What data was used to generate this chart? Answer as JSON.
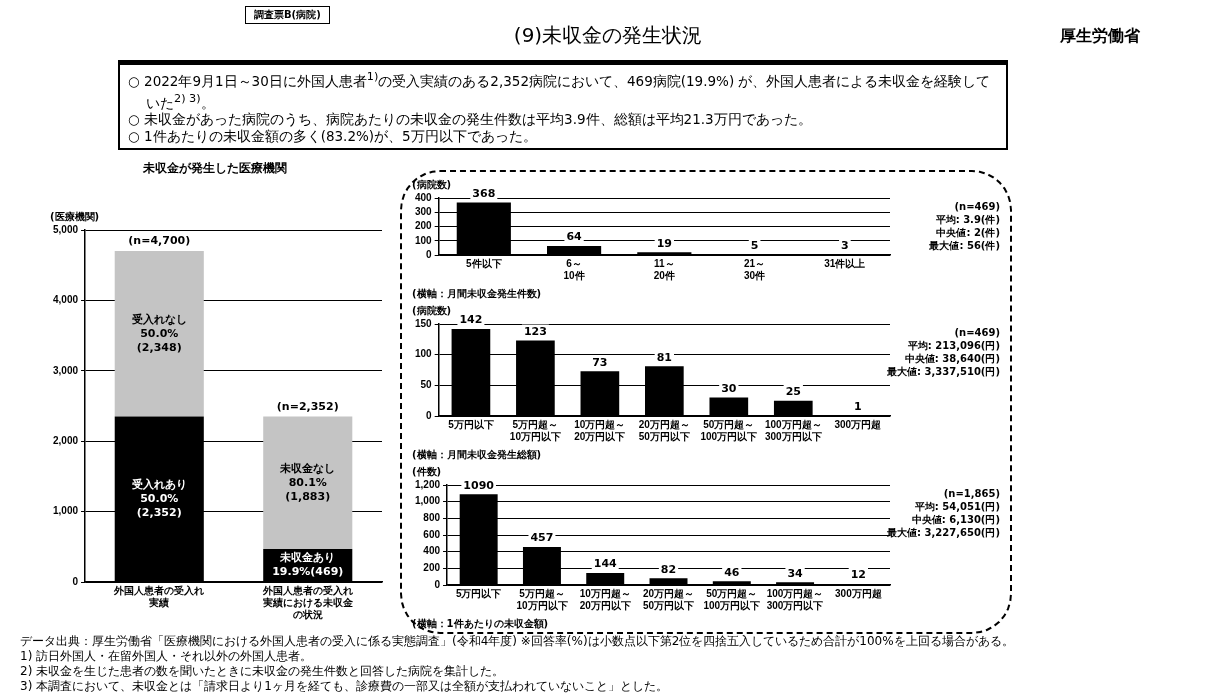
{
  "chart_data": [
    {
      "type": "bar",
      "stacked": true,
      "title": "未収金が発生した医療機関",
      "ylabel": "(医療機関)",
      "categories": [
        "外国人患者の受入れ実績",
        "外国人患者の受入れ実績における未収金の状況"
      ],
      "series": [
        {
          "color": "#000000",
          "values": [
            2352,
            469
          ],
          "value_labels": [
            "受入れあり\n50.0%\n(2,352)",
            "未収金あり\n19.9%(469)"
          ]
        },
        {
          "color": "#c4c4c4",
          "values": [
            2348,
            1883
          ],
          "value_labels": [
            "受入れなし\n50.0%\n(2,348)",
            "未収金なし\n80.1%\n(1,883)"
          ]
        }
      ],
      "totals": [
        "(n=4,700)",
        "(n=2,352)"
      ],
      "ylim": [
        0,
        5000
      ],
      "yticks": [
        0,
        {
          "value": 1000,
          "label": "1,000"
        },
        {
          "value": 2000,
          "label": "2,000"
        },
        {
          "value": 3000,
          "label": "3,000"
        },
        {
          "value": 4000,
          "label": "4,000"
        },
        {
          "value": 5000,
          "label": "5,000"
        }
      ],
      "grid": "y",
      "legend": false,
      "annotations": [
        "調査票B(病院)",
        "(9)未収金の発生状況",
        "厚生労働省",
        "○ 2022年9月1日～30日に外国人患者$^{1)}$の受入実績のある2,352病院において、469病院(19.9%) が、外国人患者による未収金を経験していた$^{2) 3)}$。",
        "○ 未収金があった病院のうち、病院あたりの未収金の発生件数は平均3.9件、総額は平均21.3万円であった。",
        "○ 1件あたりの未収金額の多く(83.2%)が、5万円以下であった。",
        "データ出典：厚生労働省「医療機関における外国人患者の受入に係る実態調査」(令和4年度) ※回答率(%)は小数点以下第2位を四捨五入しているため合計が100%を上回る場合がある。",
        "1) 訪日外国人・在留外国人・それ以外の外国人患者。",
        "2) 未収金を生じた患者の数を聞いたときに未収金の発生件数と回答した病院を集計した。",
        "3) 本調査において、未収金とは「請求日より1ヶ月を経ても、診療費の一部又は全額が支払われていないこと」とした。"
      ]
    },
    {
      "type": "bar",
      "ylabel": "(病院数)",
      "xlabel": "(横軸：月間未収金発生件数)",
      "categories": [
        "5件以下",
        "6～10件",
        "11～20件",
        "21～30件",
        "31件以上"
      ],
      "color": "#000000",
      "values": [
        368,
        64,
        19,
        5,
        3
      ],
      "data_labels": true,
      "ylim": [
        0,
        400
      ],
      "yticks": [
        0,
        100,
        200,
        300,
        400
      ],
      "grid": "y",
      "legend": false,
      "annotations": [
        "(n=469)",
        "平均: 3.9(件)",
        "中央値: 2(件)",
        "最大値: 56(件)"
      ]
    },
    {
      "type": "bar",
      "ylabel": "(病院数)",
      "xlabel": "(横軸：月間未収金発生総額)",
      "categories": [
        "5万円以下",
        "5万円超～10万円以下",
        "10万円超～20万円以下",
        "20万円超～50万円以下",
        "50万円超～100万円以下",
        "100万円超～300万円以下",
        "300万円超"
      ],
      "color": "#000000",
      "values": [
        142,
        123,
        73,
        81,
        30,
        25,
        1
      ],
      "data_labels": true,
      "ylim": [
        0,
        150
      ],
      "yticks": [
        0,
        50,
        100,
        150
      ],
      "grid": "y",
      "legend": false,
      "annotations": [
        "(n=469)",
        "平均: 213,096(円)",
        "中央値: 38,640(円)",
        "最大値: 3,337,510(円)"
      ]
    },
    {
      "type": "bar",
      "ylabel": "(件数)",
      "xlabel": "(横軸：1件あたりの未収金額)",
      "categories": [
        "5万円以下",
        "5万円超～10万円以下",
        "10万円超～20万円以下",
        "20万円超～50万円以下",
        "50万円超～100万円以下",
        "100万円超～300万円以下",
        "300万円超"
      ],
      "color": "#000000",
      "values": [
        1090,
        457,
        144,
        82,
        46,
        34,
        12
      ],
      "data_labels": true,
      "ylim": [
        0,
        1200
      ],
      "yticks": [
        0,
        200,
        400,
        600,
        800,
        {
          "value": 1000,
          "label": "1,000"
        },
        {
          "value": 1200,
          "label": "1,200"
        }
      ],
      "grid": "y",
      "legend": false,
      "annotations": [
        "(n=1,865)",
        "平均: 54,051(円)",
        "中央値: 6,130(円)",
        "最大値: 3,227,650(円)"
      ]
    }
  ]
}
